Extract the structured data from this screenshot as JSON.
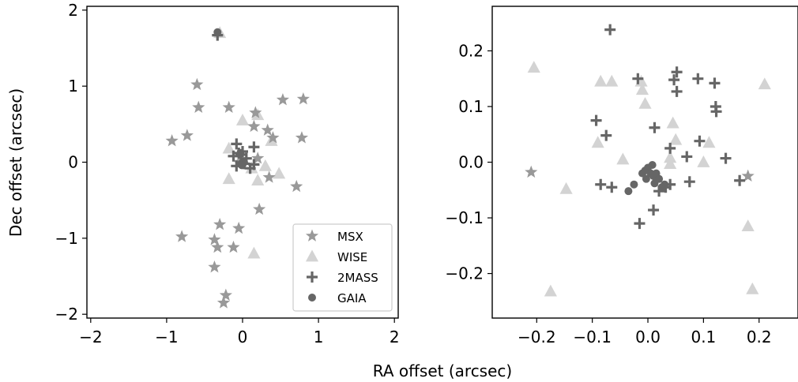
{
  "figure": {
    "xlabel": "RA offset (arcsec)",
    "ylabel": "Dec offset (arcsec)"
  },
  "series_styles": {
    "MSX": {
      "marker": "star",
      "color": "#999999"
    },
    "WISE": {
      "marker": "triangle",
      "color": "#d3d3d3"
    },
    "2MASS": {
      "marker": "plus",
      "color": "#666666"
    },
    "GAIA": {
      "marker": "circle",
      "color": "#666666"
    }
  },
  "chart_data": [
    {
      "type": "scatter",
      "xlim": [
        -2.05,
        2.05
      ],
      "ylim": [
        -2.05,
        2.05
      ],
      "xticks": [
        -2,
        -1,
        0,
        1,
        2
      ],
      "yticks": [
        -2,
        -1,
        0,
        1,
        2
      ],
      "tick_labels_x": [
        "−2",
        "−1",
        "0",
        "1",
        "2"
      ],
      "tick_labels_y": [
        "−2",
        "−1",
        "0",
        "1",
        "2"
      ],
      "legend": {
        "location": "lower-right",
        "entries": [
          "MSX",
          "WISE",
          "2MASS",
          "GAIA"
        ]
      },
      "series": [
        {
          "name": "MSX",
          "points": [
            [
              -0.6,
              1.02
            ],
            [
              -0.58,
              0.72
            ],
            [
              -0.18,
              0.72
            ],
            [
              0.17,
              0.65
            ],
            [
              0.53,
              0.82
            ],
            [
              0.8,
              0.83
            ],
            [
              -0.93,
              0.28
            ],
            [
              -0.73,
              0.35
            ],
            [
              0.15,
              0.47
            ],
            [
              0.33,
              0.42
            ],
            [
              0.4,
              0.32
            ],
            [
              0.78,
              0.32
            ],
            [
              0.2,
              0.05
            ],
            [
              -0.05,
              0.0
            ],
            [
              0.35,
              -0.2
            ],
            [
              0.71,
              -0.32
            ],
            [
              0.22,
              -0.62
            ],
            [
              -0.3,
              -0.82
            ],
            [
              -0.05,
              -0.87
            ],
            [
              -0.8,
              -0.98
            ],
            [
              -0.37,
              -1.02
            ],
            [
              -0.33,
              -1.12
            ],
            [
              -0.12,
              -1.12
            ],
            [
              -0.37,
              -1.38
            ],
            [
              -0.22,
              -1.75
            ],
            [
              -0.25,
              -1.85
            ]
          ]
        },
        {
          "name": "WISE",
          "points": [
            [
              -0.3,
              1.7
            ],
            [
              0.0,
              0.55
            ],
            [
              0.2,
              0.62
            ],
            [
              -0.18,
              0.18
            ],
            [
              0.38,
              0.28
            ],
            [
              0.12,
              -0.08
            ],
            [
              0.3,
              -0.05
            ],
            [
              0.48,
              -0.15
            ],
            [
              -0.18,
              -0.22
            ],
            [
              0.2,
              -0.24
            ],
            [
              0.15,
              -1.2
            ]
          ]
        },
        {
          "name": "2MASS",
          "points": [
            [
              -0.33,
              1.67
            ],
            [
              -0.08,
              0.24
            ],
            [
              0.15,
              0.2
            ],
            [
              -0.12,
              0.08
            ],
            [
              0.0,
              0.14
            ],
            [
              0.05,
              0.05
            ],
            [
              -0.08,
              -0.05
            ],
            [
              0.1,
              -0.08
            ],
            [
              0.15,
              -0.03
            ],
            [
              -0.02,
              0.1
            ],
            [
              0.02,
              -0.02
            ],
            [
              -0.05,
              0.12
            ]
          ]
        },
        {
          "name": "GAIA",
          "points": [
            [
              -0.33,
              1.71
            ],
            [
              -0.02,
              -0.02
            ],
            [
              0.0,
              -0.03
            ],
            [
              0.02,
              0.0
            ],
            [
              -0.01,
              -0.04
            ]
          ]
        }
      ]
    },
    {
      "type": "scatter",
      "xlim": [
        -0.28,
        0.27
      ],
      "ylim": [
        -0.28,
        0.28
      ],
      "xticks": [
        -0.2,
        -0.1,
        0.0,
        0.1,
        0.2
      ],
      "yticks": [
        -0.2,
        -0.1,
        0.0,
        0.1,
        0.2
      ],
      "tick_labels_x": [
        "−0.2",
        "−0.1",
        "0.0",
        "0.1",
        "0.2"
      ],
      "tick_labels_y": [
        "−0.2",
        "−0.1",
        "0.0",
        "0.1",
        "0.2"
      ],
      "series": [
        {
          "name": "MSX",
          "points": [
            [
              -0.21,
              -0.018
            ],
            [
              0.18,
              -0.025
            ]
          ]
        },
        {
          "name": "WISE",
          "points": [
            [
              -0.205,
              0.17
            ],
            [
              -0.085,
              0.145
            ],
            [
              -0.065,
              0.145
            ],
            [
              -0.012,
              0.145
            ],
            [
              -0.01,
              0.13
            ],
            [
              -0.005,
              0.105
            ],
            [
              0.045,
              0.07
            ],
            [
              -0.09,
              0.035
            ],
            [
              -0.045,
              0.005
            ],
            [
              0.05,
              0.04
            ],
            [
              0.04,
              0.008
            ],
            [
              0.11,
              0.035
            ],
            [
              0.04,
              -0.003
            ],
            [
              0.1,
              0.0
            ],
            [
              -0.147,
              -0.048
            ],
            [
              -0.175,
              -0.232
            ],
            [
              0.18,
              -0.115
            ],
            [
              0.188,
              -0.228
            ],
            [
              0.21,
              0.14
            ]
          ]
        },
        {
          "name": "2MASS",
          "points": [
            [
              -0.068,
              0.238
            ],
            [
              -0.018,
              0.15
            ],
            [
              0.047,
              0.148
            ],
            [
              0.052,
              0.162
            ],
            [
              0.052,
              0.127
            ],
            [
              0.09,
              0.15
            ],
            [
              0.12,
              0.142
            ],
            [
              0.122,
              0.1
            ],
            [
              0.123,
              0.091
            ],
            [
              -0.093,
              0.075
            ],
            [
              -0.075,
              0.048
            ],
            [
              0.012,
              0.062
            ],
            [
              0.093,
              0.038
            ],
            [
              0.04,
              0.025
            ],
            [
              0.07,
              0.01
            ],
            [
              0.14,
              0.007
            ],
            [
              -0.085,
              -0.04
            ],
            [
              -0.065,
              -0.045
            ],
            [
              0.02,
              -0.052
            ],
            [
              0.04,
              -0.04
            ],
            [
              0.075,
              -0.035
            ],
            [
              0.165,
              -0.033
            ],
            [
              0.01,
              -0.086
            ],
            [
              -0.015,
              -0.11
            ],
            [
              0.032,
              -0.045
            ]
          ]
        },
        {
          "name": "GAIA",
          "points": [
            [
              -0.035,
              -0.052
            ],
            [
              -0.025,
              -0.04
            ],
            [
              -0.01,
              -0.02
            ],
            [
              -0.005,
              -0.015
            ],
            [
              0.0,
              -0.01
            ],
            [
              0.005,
              -0.02
            ],
            [
              0.01,
              -0.025
            ],
            [
              0.015,
              -0.02
            ],
            [
              0.02,
              -0.03
            ],
            [
              0.03,
              -0.04
            ],
            [
              0.008,
              -0.005
            ],
            [
              -0.003,
              -0.03
            ],
            [
              0.012,
              -0.038
            ],
            [
              0.025,
              -0.045
            ]
          ]
        }
      ]
    }
  ]
}
